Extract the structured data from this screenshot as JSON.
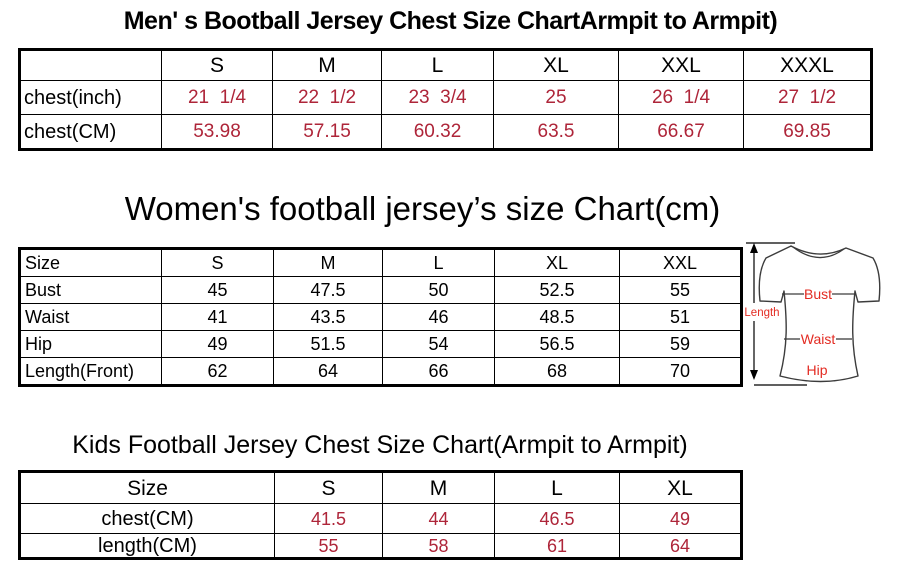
{
  "colors": {
    "table_value_red": "#ae2539",
    "diagram_label_red": "#e32b22",
    "text_black": "#000000"
  },
  "men_chart": {
    "title": "Men' s Bootball Jersey Chest Size ChartArmpit to Armpit)",
    "headers": [
      "",
      "S",
      "M",
      "L",
      "XL",
      "XXL",
      "XXXL"
    ],
    "rows": [
      {
        "label": "chest(inch)",
        "values": [
          "21  1/4",
          "22  1/2",
          "23  3/4",
          "25",
          "26  1/4",
          "27  1/2"
        ]
      },
      {
        "label": "chest(CM)",
        "values": [
          "53.98",
          "57.15",
          "60.32",
          "63.5",
          "66.67",
          "69.85"
        ]
      }
    ]
  },
  "women_chart": {
    "title": "Women's football jersey’s size Chart(cm)",
    "headers": [
      "Size",
      "S",
      "M",
      "L",
      "XL",
      "XXL"
    ],
    "rows": [
      {
        "label": "Bust",
        "values": [
          "45",
          "47.5",
          "50",
          "52.5",
          "55"
        ]
      },
      {
        "label": "Waist",
        "values": [
          "41",
          "43.5",
          "46",
          "48.5",
          "51"
        ]
      },
      {
        "label": "Hip",
        "values": [
          "49",
          "51.5",
          "54",
          "56.5",
          "59"
        ]
      },
      {
        "label": "Length(Front)",
        "values": [
          "62",
          "64",
          "66",
          "68",
          "70"
        ]
      }
    ]
  },
  "kids_chart": {
    "title": "Kids Football Jersey Chest Size Chart(Armpit to Armpit)",
    "headers": [
      "Size",
      "S",
      "M",
      "L",
      "XL"
    ],
    "rows": [
      {
        "label": "chest(CM)",
        "values": [
          "41.5",
          "44",
          "46.5",
          "49"
        ]
      },
      {
        "label": "length(CM)",
        "values": [
          "55",
          "58",
          "61",
          "64"
        ]
      }
    ]
  },
  "diagram": {
    "length_label": "Length",
    "bust_label": "Bust",
    "waist_label": "Waist",
    "hip_label": "Hip"
  }
}
